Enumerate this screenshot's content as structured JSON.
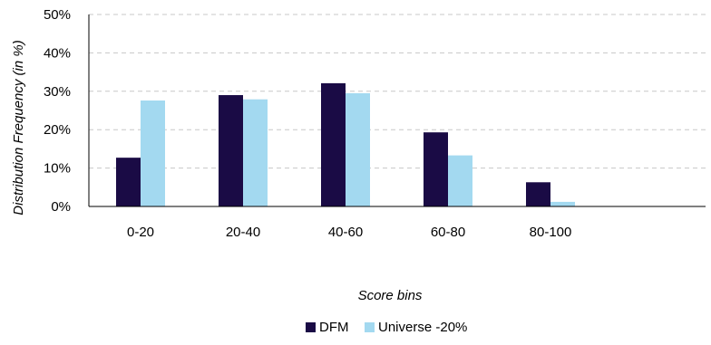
{
  "chart_data": {
    "type": "bar",
    "categories": [
      "0-20",
      "20-40",
      "40-60",
      "60-80",
      "80-100"
    ],
    "series": [
      {
        "name": "DFM",
        "values": [
          12.7,
          29.0,
          32.1,
          19.3,
          6.3
        ],
        "color": "#1a0b45"
      },
      {
        "name": "Universe -20%",
        "values": [
          27.6,
          27.9,
          29.5,
          13.3,
          1.2
        ],
        "color": "#a3d9f0"
      }
    ],
    "xlabel": "Score bins",
    "ylabel": "Distribution Frequency (in %)",
    "ylim": [
      0,
      50
    ],
    "y_ticks": [
      "0%",
      "10%",
      "20%",
      "30%",
      "40%",
      "50%"
    ],
    "grid": true,
    "legend": "bottom-center"
  }
}
